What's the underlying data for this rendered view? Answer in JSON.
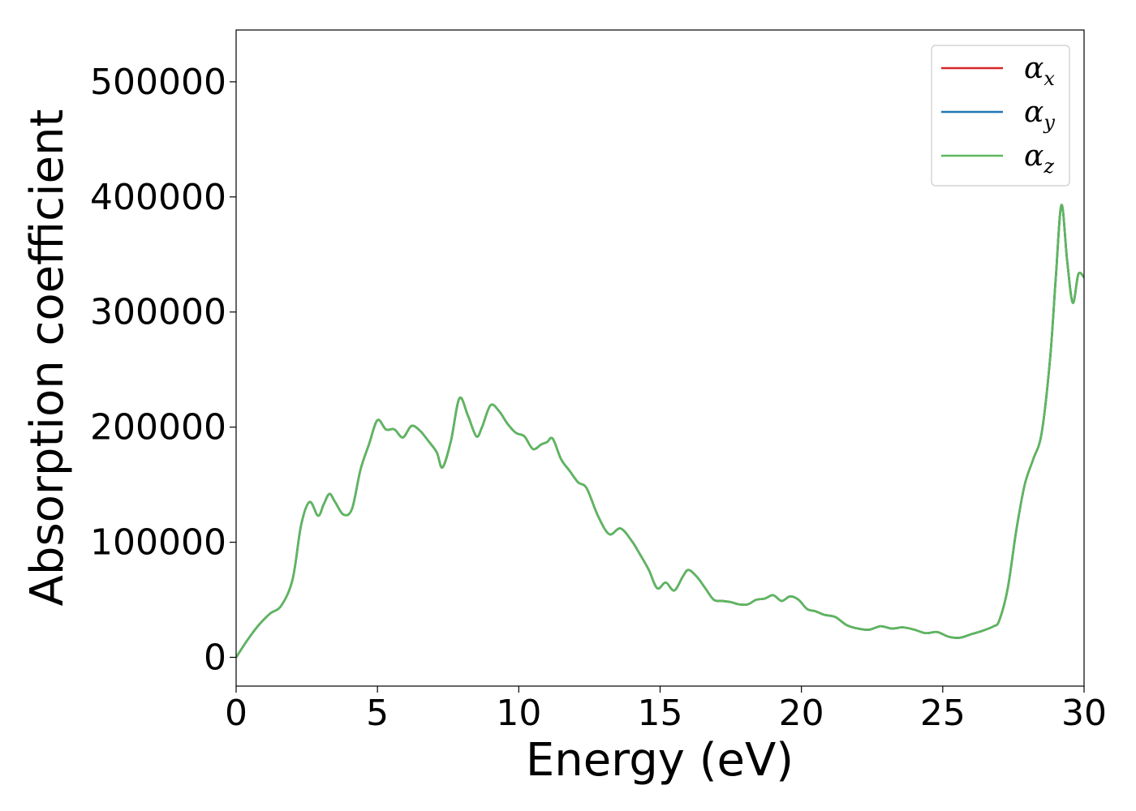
{
  "chart_data": {
    "type": "line",
    "title": "",
    "xlabel": "Energy (eV)",
    "ylabel": "Absorption coefficient",
    "xlim": [
      0,
      30
    ],
    "ylim": [
      -25000,
      545000
    ],
    "grid": false,
    "legend_position": "top-right",
    "xticks": [
      0,
      5,
      10,
      15,
      20,
      25,
      30
    ],
    "xtick_labels": [
      "0",
      "5",
      "10",
      "15",
      "20",
      "25",
      "30"
    ],
    "yticks": [
      0,
      100000,
      200000,
      300000,
      400000,
      500000
    ],
    "ytick_labels": [
      "0",
      "100000",
      "200000",
      "300000",
      "400000",
      "500000"
    ],
    "x": [
      0,
      0.4,
      0.8,
      1.2,
      1.6,
      2.0,
      2.3,
      2.6,
      2.9,
      3.1,
      3.3,
      3.5,
      3.8,
      4.1,
      4.4,
      4.7,
      5.0,
      5.3,
      5.6,
      5.9,
      6.2,
      6.5,
      6.8,
      7.1,
      7.3,
      7.6,
      7.9,
      8.2,
      8.5,
      8.7,
      9.0,
      9.3,
      9.6,
      9.9,
      10.2,
      10.5,
      10.8,
      11.0,
      11.2,
      11.5,
      11.8,
      12.1,
      12.4,
      12.8,
      13.2,
      13.6,
      14.0,
      14.3,
      14.6,
      14.9,
      15.2,
      15.5,
      15.8,
      16.0,
      16.3,
      16.6,
      16.9,
      17.2,
      17.5,
      17.8,
      18.1,
      18.4,
      18.7,
      19.0,
      19.3,
      19.6,
      19.9,
      20.2,
      20.5,
      20.8,
      21.2,
      21.6,
      22.0,
      22.4,
      22.8,
      23.2,
      23.6,
      24.0,
      24.4,
      24.8,
      25.2,
      25.6,
      26.0,
      26.4,
      26.8,
      27.0,
      27.3,
      27.6,
      27.9,
      28.2,
      28.5,
      28.8,
      29.0,
      29.2,
      29.4,
      29.6,
      29.8,
      30.0
    ],
    "series": [
      {
        "name": "αx",
        "color": "#d62728",
        "values": [
          0,
          15000,
          28000,
          38000,
          45000,
          68000,
          115000,
          135000,
          123000,
          133000,
          142000,
          135000,
          124000,
          129000,
          163000,
          185000,
          206000,
          198000,
          198000,
          191000,
          201000,
          197000,
          188000,
          178000,
          165000,
          188000,
          225000,
          210000,
          192000,
          200000,
          219000,
          214000,
          203000,
          195000,
          192000,
          181000,
          185000,
          187000,
          190000,
          172000,
          162000,
          152000,
          147000,
          123000,
          107000,
          112000,
          101000,
          89000,
          76000,
          60000,
          65000,
          58000,
          70000,
          76000,
          70000,
          60000,
          50000,
          49000,
          48000,
          46000,
          46000,
          50000,
          51000,
          54000,
          49000,
          53000,
          50000,
          42000,
          40000,
          37000,
          35000,
          28000,
          25000,
          24000,
          27000,
          25000,
          26000,
          24000,
          21000,
          22000,
          18000,
          17000,
          20000,
          23000,
          27000,
          32000,
          60000,
          110000,
          150000,
          172000,
          195000,
          260000,
          330000,
          393000,
          345000,
          308000,
          333000,
          330000
        ]
      },
      {
        "name": "αy",
        "color": "#1f77b4",
        "values": [
          0,
          15000,
          28000,
          38000,
          45000,
          68000,
          115000,
          135000,
          123000,
          133000,
          142000,
          135000,
          124000,
          129000,
          163000,
          185000,
          206000,
          198000,
          198000,
          191000,
          201000,
          197000,
          188000,
          178000,
          165000,
          188000,
          225000,
          210000,
          192000,
          200000,
          219000,
          214000,
          203000,
          195000,
          192000,
          181000,
          185000,
          187000,
          190000,
          172000,
          162000,
          152000,
          147000,
          123000,
          107000,
          112000,
          101000,
          89000,
          76000,
          60000,
          65000,
          58000,
          70000,
          76000,
          70000,
          60000,
          50000,
          49000,
          48000,
          46000,
          46000,
          50000,
          51000,
          54000,
          49000,
          53000,
          50000,
          42000,
          40000,
          37000,
          35000,
          28000,
          25000,
          24000,
          27000,
          25000,
          26000,
          24000,
          21000,
          22000,
          18000,
          17000,
          20000,
          23000,
          27000,
          32000,
          60000,
          110000,
          150000,
          172000,
          195000,
          260000,
          330000,
          393000,
          345000,
          308000,
          333000,
          330000
        ]
      },
      {
        "name": "αz",
        "color": "#5cb85c",
        "values": [
          0,
          15000,
          28000,
          38000,
          45000,
          68000,
          115000,
          135000,
          123000,
          133000,
          142000,
          135000,
          124000,
          129000,
          163000,
          185000,
          206000,
          198000,
          198000,
          191000,
          201000,
          197000,
          188000,
          178000,
          165000,
          188000,
          225000,
          210000,
          192000,
          200000,
          219000,
          214000,
          203000,
          195000,
          192000,
          181000,
          185000,
          187000,
          190000,
          172000,
          162000,
          152000,
          147000,
          123000,
          107000,
          112000,
          101000,
          89000,
          76000,
          60000,
          65000,
          58000,
          70000,
          76000,
          70000,
          60000,
          50000,
          49000,
          48000,
          46000,
          46000,
          50000,
          51000,
          54000,
          49000,
          53000,
          50000,
          42000,
          40000,
          37000,
          35000,
          28000,
          25000,
          24000,
          27000,
          25000,
          26000,
          24000,
          21000,
          22000,
          18000,
          17000,
          20000,
          23000,
          27000,
          32000,
          60000,
          110000,
          150000,
          172000,
          195000,
          260000,
          330000,
          393000,
          345000,
          308000,
          333000,
          330000
        ]
      }
    ]
  },
  "legend": {
    "items": [
      {
        "symbol": "α",
        "subscript": "x",
        "color": "#d62728"
      },
      {
        "symbol": "α",
        "subscript": "y",
        "color": "#1f77b4"
      },
      {
        "symbol": "α",
        "subscript": "z",
        "color": "#5cb85c"
      }
    ]
  }
}
